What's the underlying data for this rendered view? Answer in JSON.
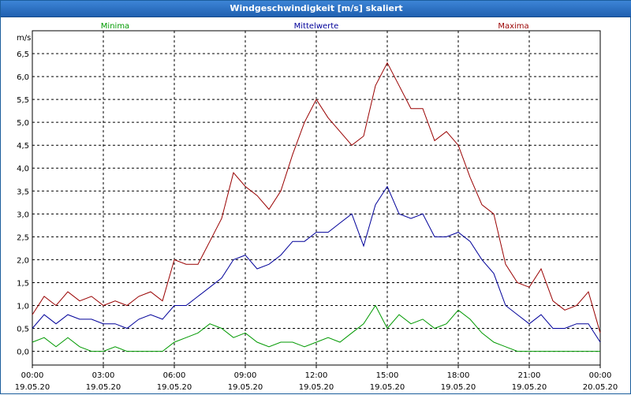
{
  "window": {
    "title": "Windgeschwindigkeit [m/s] skaliert"
  },
  "chart_data": {
    "type": "line",
    "title": "Windgeschwindigkeit [m/s] skaliert",
    "ylabel": "m/s",
    "ylim": [
      -0.3,
      7.0
    ],
    "xlim": [
      0,
      24
    ],
    "x_unit": "hours since 19.05.20 00:00",
    "y_ticks": [
      0.0,
      0.5,
      1.0,
      1.5,
      2.0,
      2.5,
      3.0,
      3.5,
      4.0,
      4.5,
      5.0,
      5.5,
      6.0,
      6.5
    ],
    "y_tick_labels": [
      "0,0",
      "0,5",
      "1,0",
      "1,5",
      "2,0",
      "2,5",
      "3,0",
      "3,5",
      "4,0",
      "4,5",
      "5,0",
      "5,5",
      "6,0",
      "6,5"
    ],
    "x_ticks": [
      0,
      3,
      6,
      9,
      12,
      15,
      18,
      21,
      24
    ],
    "x_tick_labels": [
      {
        "time": "00:00",
        "date": "19.05.20"
      },
      {
        "time": "03:00",
        "date": "19.05.20"
      },
      {
        "time": "06:00",
        "date": "19.05.20"
      },
      {
        "time": "09:00",
        "date": "19.05.20"
      },
      {
        "time": "12:00",
        "date": "19.05.20"
      },
      {
        "time": "15:00",
        "date": "19.05.20"
      },
      {
        "time": "18:00",
        "date": "19.05.20"
      },
      {
        "time": "21:00",
        "date": "19.05.20"
      },
      {
        "time": "00:00",
        "date": "20.05.20"
      }
    ],
    "grid": true,
    "legend_position": "top",
    "series": [
      {
        "name": "Maxima",
        "color": "#990000",
        "x": [
          0,
          0.5,
          1,
          1.5,
          2,
          2.5,
          3,
          3.5,
          4,
          4.5,
          5,
          5.5,
          6,
          6.5,
          7,
          7.5,
          8,
          8.5,
          9,
          9.5,
          10,
          10.5,
          11,
          11.5,
          12,
          12.5,
          13,
          13.5,
          14,
          14.5,
          15,
          15.5,
          16,
          16.5,
          17,
          17.5,
          18,
          18.5,
          19,
          19.5,
          20,
          20.5,
          21,
          21.5,
          22,
          22.5,
          23,
          23.5,
          24
        ],
        "y": [
          0.8,
          1.2,
          1.0,
          1.3,
          1.1,
          1.2,
          1.0,
          1.1,
          1.0,
          1.2,
          1.3,
          1.1,
          2.0,
          1.9,
          1.9,
          2.4,
          2.9,
          3.9,
          3.6,
          3.4,
          3.1,
          3.5,
          4.3,
          5.0,
          5.5,
          5.1,
          4.8,
          4.5,
          4.7,
          5.8,
          6.3,
          5.8,
          5.3,
          5.3,
          4.6,
          4.8,
          4.5,
          3.8,
          3.2,
          3.0,
          1.9,
          1.5,
          1.4,
          1.8,
          1.1,
          0.9,
          1.0,
          1.3,
          0.4
        ]
      },
      {
        "name": "Mittelwerte",
        "color": "#000099",
        "x": [
          0,
          0.5,
          1,
          1.5,
          2,
          2.5,
          3,
          3.5,
          4,
          4.5,
          5,
          5.5,
          6,
          6.5,
          7,
          7.5,
          8,
          8.5,
          9,
          9.5,
          10,
          10.5,
          11,
          11.5,
          12,
          12.5,
          13,
          13.5,
          14,
          14.5,
          15,
          15.5,
          16,
          16.5,
          17,
          17.5,
          18,
          18.5,
          19,
          19.5,
          20,
          20.5,
          21,
          21.5,
          22,
          22.5,
          23,
          23.5,
          24
        ],
        "y": [
          0.5,
          0.8,
          0.6,
          0.8,
          0.7,
          0.7,
          0.6,
          0.6,
          0.5,
          0.7,
          0.8,
          0.7,
          1.0,
          1.0,
          1.2,
          1.4,
          1.6,
          2.0,
          2.1,
          1.8,
          1.9,
          2.1,
          2.4,
          2.4,
          2.6,
          2.6,
          2.8,
          3.0,
          2.3,
          3.2,
          3.6,
          3.0,
          2.9,
          3.0,
          2.5,
          2.5,
          2.6,
          2.4,
          2.0,
          1.7,
          1.0,
          0.8,
          0.6,
          0.8,
          0.5,
          0.5,
          0.6,
          0.6,
          0.2
        ]
      },
      {
        "name": "Minima",
        "color": "#009900",
        "x": [
          0,
          0.5,
          1,
          1.5,
          2,
          2.5,
          3,
          3.5,
          4,
          4.5,
          5,
          5.5,
          6,
          6.5,
          7,
          7.5,
          8,
          8.5,
          9,
          9.5,
          10,
          10.5,
          11,
          11.5,
          12,
          12.5,
          13,
          13.5,
          14,
          14.5,
          15,
          15.5,
          16,
          16.5,
          17,
          17.5,
          18,
          18.5,
          19,
          19.5,
          20,
          20.5,
          21,
          21.5,
          22,
          22.5,
          23,
          23.5,
          24
        ],
        "y": [
          0.2,
          0.3,
          0.1,
          0.3,
          0.1,
          0.0,
          0.0,
          0.1,
          0.0,
          0.0,
          0.0,
          0.0,
          0.2,
          0.3,
          0.4,
          0.6,
          0.5,
          0.3,
          0.4,
          0.2,
          0.1,
          0.2,
          0.2,
          0.1,
          0.2,
          0.3,
          0.2,
          0.4,
          0.6,
          1.0,
          0.5,
          0.8,
          0.6,
          0.7,
          0.5,
          0.6,
          0.9,
          0.7,
          0.4,
          0.2,
          0.1,
          0.0,
          0.0,
          0.0,
          0.0,
          0.0,
          0.0,
          0.0,
          0.0
        ]
      }
    ]
  }
}
